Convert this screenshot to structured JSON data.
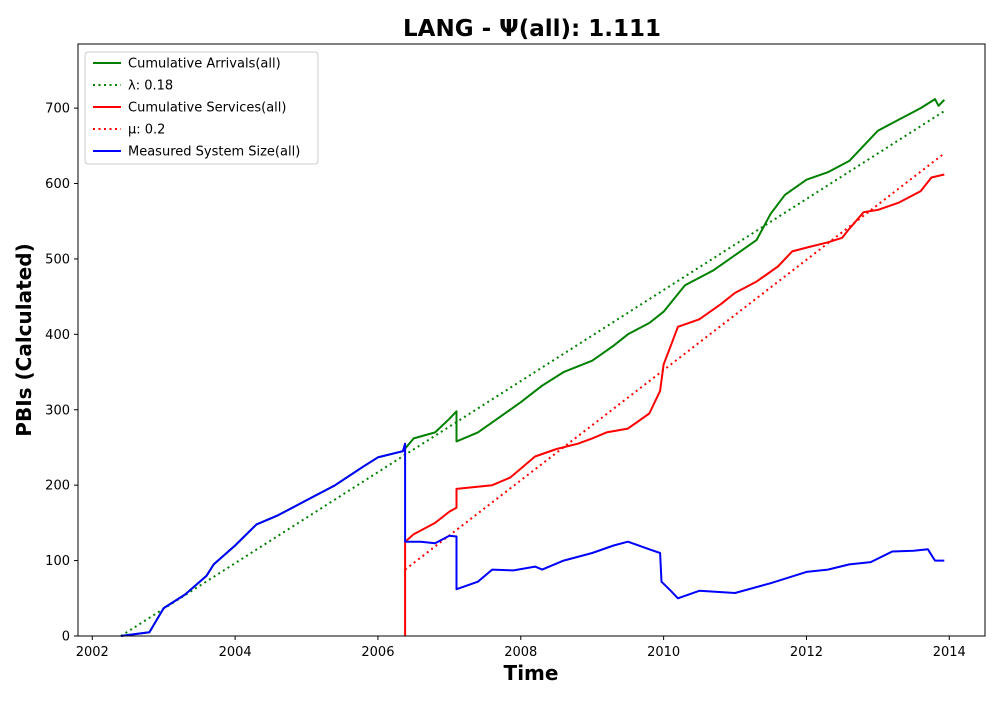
{
  "chart_data": {
    "type": "line",
    "title": "LANG -  Ψ(all): 1.111",
    "xlabel": "Time",
    "ylabel": "PBIs (Calculated)",
    "xlim": [
      2001.8,
      2014.5
    ],
    "ylim": [
      0,
      785
    ],
    "x_ticks": [
      2002,
      2004,
      2006,
      2008,
      2010,
      2012,
      2014
    ],
    "y_ticks": [
      0,
      100,
      200,
      300,
      400,
      500,
      600,
      700
    ],
    "grid": false,
    "legend_position": "top-left",
    "legend": [
      "Cumulative Arrivals(all)",
      "λ: 0.18",
      "Cumulative Services(all)",
      "μ: 0.2",
      "Measured System Size(all)"
    ],
    "series": [
      {
        "name": "Cumulative Arrivals(all)",
        "color": "#008000",
        "style": "solid",
        "x": [
          2002.4,
          2002.8,
          2003.0,
          2003.3,
          2003.6,
          2003.7,
          2004.0,
          2004.3,
          2004.6,
          2005.0,
          2005.4,
          2005.8,
          2006.0,
          2006.35,
          2006.5,
          2006.8,
          2007.0,
          2007.1,
          2007.1,
          2007.4,
          2007.7,
          2008.0,
          2008.3,
          2008.6,
          2009.0,
          2009.3,
          2009.5,
          2009.8,
          2010.0,
          2010.3,
          2010.7,
          2011.0,
          2011.3,
          2011.5,
          2011.7,
          2012.0,
          2012.3,
          2012.6,
          2012.9,
          2013.0,
          2013.3,
          2013.6,
          2013.8,
          2013.85,
          2013.93
        ],
        "y": [
          0,
          5,
          37,
          55,
          80,
          95,
          120,
          148,
          160,
          180,
          200,
          225,
          237,
          245,
          262,
          270,
          288,
          298,
          258,
          270,
          290,
          310,
          332,
          350,
          365,
          385,
          400,
          415,
          430,
          465,
          485,
          505,
          525,
          560,
          585,
          605,
          615,
          630,
          660,
          670,
          685,
          700,
          712,
          703,
          711
        ]
      },
      {
        "name": "λ: 0.18",
        "color": "#008000",
        "style": "dotted",
        "x": [
          2002.4,
          2013.93
        ],
        "y": [
          0,
          696
        ]
      },
      {
        "name": "Cumulative Services(all)",
        "color": "#ff0000",
        "style": "solid",
        "x": [
          2006.38,
          2006.38,
          2006.5,
          2006.8,
          2007.0,
          2007.1,
          2007.1,
          2007.6,
          2007.85,
          2008.0,
          2008.2,
          2008.5,
          2008.8,
          2009.0,
          2009.2,
          2009.5,
          2009.8,
          2009.95,
          2010.0,
          2010.1,
          2010.2,
          2010.5,
          2010.8,
          2011.0,
          2011.3,
          2011.6,
          2011.8,
          2012.0,
          2012.3,
          2012.5,
          2012.6,
          2012.8,
          2013.0,
          2013.3,
          2013.6,
          2013.75,
          2013.93
        ],
        "y": [
          0,
          125,
          135,
          150,
          165,
          170,
          195,
          200,
          210,
          222,
          238,
          248,
          255,
          262,
          270,
          275,
          295,
          325,
          360,
          385,
          410,
          420,
          440,
          455,
          470,
          490,
          510,
          515,
          522,
          528,
          540,
          562,
          565,
          575,
          590,
          608,
          612
        ]
      },
      {
        "name": "μ: 0.2",
        "color": "#ff0000",
        "style": "dotted",
        "x": [
          2006.38,
          2013.93
        ],
        "y": [
          88,
          640
        ]
      },
      {
        "name": "Measured System Size(all)",
        "color": "#0000ff",
        "style": "solid",
        "x": [
          2002.4,
          2002.8,
          2003.0,
          2003.3,
          2003.6,
          2003.7,
          2004.0,
          2004.3,
          2004.6,
          2005.0,
          2005.4,
          2005.8,
          2006.0,
          2006.35,
          2006.38,
          2006.38,
          2006.6,
          2006.8,
          2007.0,
          2007.1,
          2007.1,
          2007.4,
          2007.6,
          2007.9,
          2008.2,
          2008.3,
          2008.6,
          2009.0,
          2009.3,
          2009.5,
          2009.8,
          2009.95,
          2009.97,
          2010.1,
          2010.2,
          2010.5,
          2011.0,
          2011.5,
          2012.0,
          2012.3,
          2012.6,
          2012.9,
          2013.2,
          2013.5,
          2013.7,
          2013.8,
          2013.93
        ],
        "y": [
          0,
          5,
          37,
          55,
          80,
          95,
          120,
          148,
          160,
          180,
          200,
          225,
          237,
          245,
          255,
          125,
          125,
          123,
          133,
          132,
          62,
          72,
          88,
          87,
          92,
          88,
          100,
          110,
          120,
          125,
          115,
          110,
          72,
          60,
          50,
          60,
          57,
          70,
          85,
          88,
          95,
          98,
          112,
          113,
          115,
          100,
          100
        ]
      }
    ]
  }
}
